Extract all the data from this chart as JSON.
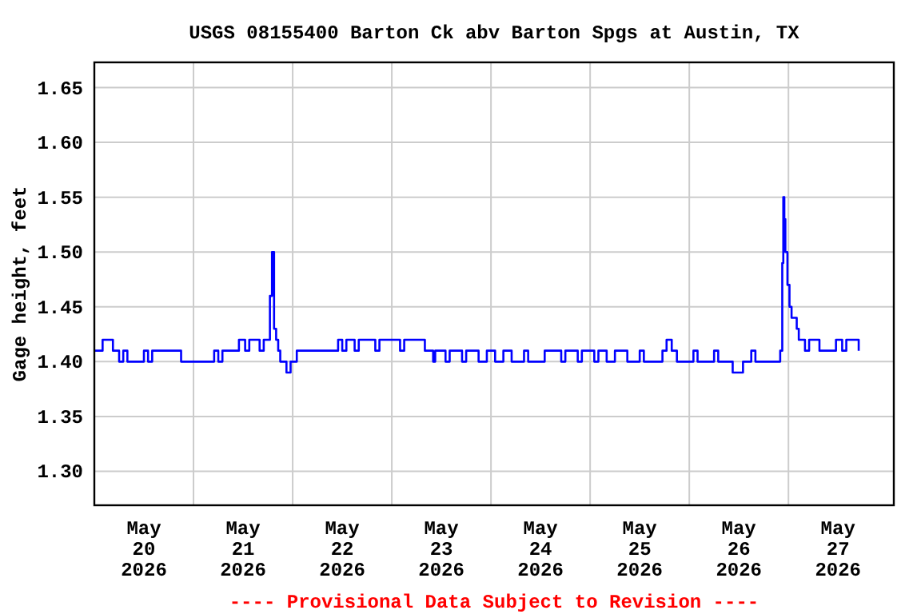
{
  "chart_data": {
    "type": "step",
    "title": "USGS 08155400 Barton Ck abv Barton Spgs at Austin, TX",
    "ylabel": "Gage height, feet",
    "annotations": [
      "---- Provisional Data Subject to Revision ----"
    ],
    "x": [
      "2026-05-20T00:00",
      "2026-05-20T02:00",
      "2026-05-20T04:30",
      "2026-05-20T06:00",
      "2026-05-20T07:00",
      "2026-05-20T08:00",
      "2026-05-20T12:00",
      "2026-05-20T13:00",
      "2026-05-20T14:00",
      "2026-05-20T21:00",
      "2026-05-21T05:00",
      "2026-05-21T06:00",
      "2026-05-21T07:00",
      "2026-05-21T11:00",
      "2026-05-21T12:30",
      "2026-05-21T13:30",
      "2026-05-21T16:00",
      "2026-05-21T17:00",
      "2026-05-21T18:30",
      "2026-05-21T19:00",
      "2026-05-21T19:30",
      "2026-05-21T20:00",
      "2026-05-21T20:30",
      "2026-05-21T21:00",
      "2026-05-21T22:30",
      "2026-05-21T23:30",
      "2026-05-22T01:00",
      "2026-05-22T11:00",
      "2026-05-22T12:00",
      "2026-05-22T13:00",
      "2026-05-22T15:00",
      "2026-05-22T16:00",
      "2026-05-22T20:00",
      "2026-05-22T21:00",
      "2026-05-23T02:00",
      "2026-05-23T03:00",
      "2026-05-23T08:00",
      "2026-05-23T10:00",
      "2026-05-23T10:30",
      "2026-05-23T13:00",
      "2026-05-23T14:00",
      "2026-05-23T17:00",
      "2026-05-23T18:00",
      "2026-05-23T21:00",
      "2026-05-23T23:00",
      "2026-05-24T01:00",
      "2026-05-24T03:00",
      "2026-05-24T05:00",
      "2026-05-24T08:00",
      "2026-05-24T09:00",
      "2026-05-24T13:00",
      "2026-05-24T17:00",
      "2026-05-24T18:00",
      "2026-05-24T21:00",
      "2026-05-24T22:00",
      "2026-05-25T01:00",
      "2026-05-25T02:00",
      "2026-05-25T04:00",
      "2026-05-25T06:00",
      "2026-05-25T09:00",
      "2026-05-25T12:00",
      "2026-05-25T13:00",
      "2026-05-25T17:30",
      "2026-05-25T18:30",
      "2026-05-25T19:45",
      "2026-05-25T21:00",
      "2026-05-26T01:00",
      "2026-05-26T02:00",
      "2026-05-26T06:00",
      "2026-05-26T07:00",
      "2026-05-26T10:30",
      "2026-05-26T13:00",
      "2026-05-26T15:00",
      "2026-05-26T16:00",
      "2026-05-26T22:00",
      "2026-05-26T22:30",
      "2026-05-26T22:45",
      "2026-05-26T23:00",
      "2026-05-26T23:15",
      "2026-05-26T23:45",
      "2026-05-27T00:15",
      "2026-05-27T00:45",
      "2026-05-27T02:00",
      "2026-05-27T02:30",
      "2026-05-27T04:00",
      "2026-05-27T05:00",
      "2026-05-27T07:30",
      "2026-05-27T11:30",
      "2026-05-27T13:00",
      "2026-05-27T14:00",
      "2026-05-27T17:00"
    ],
    "series": [
      {
        "color": "#0000ff",
        "values": [
          1.41,
          1.42,
          1.41,
          1.4,
          1.41,
          1.4,
          1.41,
          1.4,
          1.41,
          1.4,
          1.41,
          1.4,
          1.41,
          1.42,
          1.41,
          1.42,
          1.41,
          1.42,
          1.46,
          1.5,
          1.43,
          1.42,
          1.41,
          1.4,
          1.39,
          1.4,
          1.41,
          1.42,
          1.41,
          1.42,
          1.41,
          1.42,
          1.41,
          1.42,
          1.41,
          1.42,
          1.41,
          1.4,
          1.41,
          1.4,
          1.41,
          1.4,
          1.41,
          1.4,
          1.41,
          1.4,
          1.41,
          1.4,
          1.41,
          1.4,
          1.41,
          1.4,
          1.41,
          1.4,
          1.41,
          1.4,
          1.41,
          1.4,
          1.41,
          1.4,
          1.41,
          1.4,
          1.41,
          1.42,
          1.41,
          1.4,
          1.41,
          1.4,
          1.41,
          1.4,
          1.39,
          1.4,
          1.41,
          1.4,
          1.41,
          1.49,
          1.55,
          1.53,
          1.5,
          1.47,
          1.45,
          1.44,
          1.43,
          1.42,
          1.41,
          1.42,
          1.41,
          1.42,
          1.41,
          1.42,
          1.41
        ]
      }
    ],
    "xlim": [
      "2026-05-20T00:00",
      "2026-05-28T01:30"
    ],
    "xticks": [
      {
        "value": "2026-05-20T12:00",
        "label": "May\n20\n2026"
      },
      {
        "value": "2026-05-21T00:00",
        "label": null
      },
      {
        "value": "2026-05-21T12:00",
        "label": "May\n21\n2026"
      },
      {
        "value": "2026-05-22T00:00",
        "label": null
      },
      {
        "value": "2026-05-22T12:00",
        "label": "May\n22\n2026"
      },
      {
        "value": "2026-05-23T00:00",
        "label": null
      },
      {
        "value": "2026-05-23T12:00",
        "label": "May\n23\n2026"
      },
      {
        "value": "2026-05-24T00:00",
        "label": null
      },
      {
        "value": "2026-05-24T12:00",
        "label": "May\n24\n2026"
      },
      {
        "value": "2026-05-25T00:00",
        "label": null
      },
      {
        "value": "2026-05-25T12:00",
        "label": "May\n25\n2026"
      },
      {
        "value": "2026-05-26T00:00",
        "label": null
      },
      {
        "value": "2026-05-26T12:00",
        "label": "May\n26\n2026"
      },
      {
        "value": "2026-05-27T00:00",
        "label": null
      },
      {
        "value": "2026-05-27T12:00",
        "label": "May\n27\n2026"
      }
    ],
    "ylim": [
      1.269,
      1.673
    ],
    "yticks": [
      {
        "value": 1.3,
        "label": "1.30"
      },
      {
        "value": 1.35,
        "label": "1.35"
      },
      {
        "value": 1.4,
        "label": "1.40"
      },
      {
        "value": 1.45,
        "label": "1.45"
      },
      {
        "value": 1.5,
        "label": "1.50"
      },
      {
        "value": 1.55,
        "label": "1.55"
      },
      {
        "value": 1.6,
        "label": "1.60"
      },
      {
        "value": 1.65,
        "label": "1.65"
      }
    ],
    "grid": true
  }
}
